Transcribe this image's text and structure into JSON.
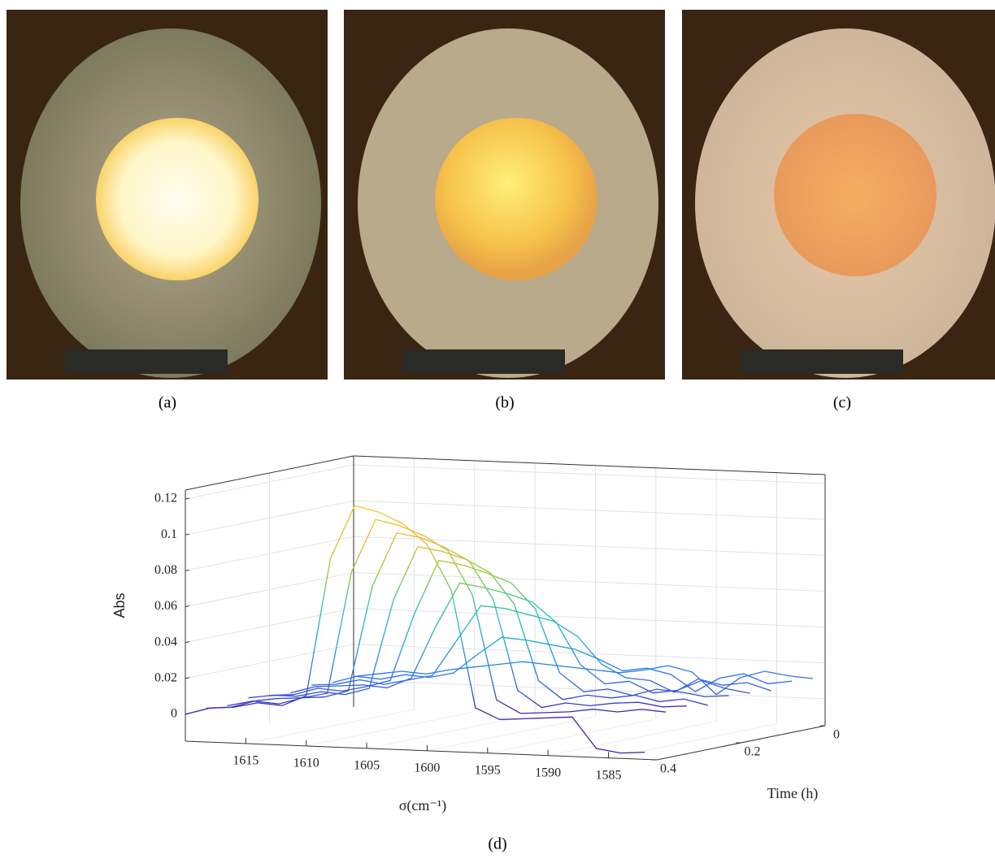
{
  "figure": {
    "captions": [
      "(a)",
      "(b)",
      "(c)",
      "(d)"
    ]
  },
  "chart_data": {
    "type": "waterfall3d",
    "xlabel": "σ(cm⁻¹)",
    "ylabel": "Abs",
    "tlabel": "Time (h)",
    "xlim": [
      1620,
      1581
    ],
    "ylim": [
      -0.015,
      0.125
    ],
    "tlim": [
      0,
      0.4
    ],
    "xticks": [
      1615,
      1610,
      1605,
      1600,
      1595,
      1590,
      1585
    ],
    "yticks": [
      0,
      0.02,
      0.04,
      0.06,
      0.08,
      0.1,
      0.12
    ],
    "tticks": [
      0,
      0.2,
      0.4
    ],
    "grid": true,
    "colormap": [
      "#3e26a8",
      "#2f6ff0",
      "#1aa9d8",
      "#2fc3a0",
      "#9cc93a",
      "#f3b52f",
      "#f9d11c"
    ],
    "x": [
      1620,
      1618,
      1616,
      1614,
      1612,
      1610,
      1608,
      1606,
      1604,
      1602,
      1600,
      1598,
      1596,
      1594,
      1592,
      1590,
      1588,
      1586,
      1584,
      1582
    ],
    "t": [
      0,
      0.05,
      0.1,
      0.15,
      0.2,
      0.25,
      0.3,
      0.35,
      0.4
    ],
    "values": [
      [
        0.002,
        0.004,
        0.006,
        0.005,
        0.008,
        0.01,
        0.012,
        0.014,
        0.013,
        0.012,
        0.011,
        0.01,
        0.012,
        0.015,
        0.012,
        0.0,
        0.01,
        0.014,
        0.012,
        0.011
      ],
      [
        0.001,
        0.005,
        0.004,
        0.007,
        0.006,
        0.009,
        0.02,
        0.03,
        0.029,
        0.027,
        0.025,
        0.02,
        0.014,
        0.016,
        0.013,
        0.004,
        0.012,
        0.015,
        0.01,
        0.012
      ],
      [
        0.002,
        0.003,
        0.006,
        0.004,
        0.007,
        0.01,
        0.03,
        0.05,
        0.049,
        0.046,
        0.043,
        0.035,
        0.02,
        0.013,
        0.012,
        0.006,
        0.014,
        0.011,
        0.013,
        0.009
      ],
      [
        0.0,
        0.004,
        0.005,
        0.006,
        0.005,
        0.011,
        0.04,
        0.065,
        0.063,
        0.06,
        0.056,
        0.045,
        0.022,
        0.012,
        0.014,
        0.008,
        0.01,
        0.016,
        0.012,
        0.01
      ],
      [
        0.001,
        0.002,
        0.006,
        0.005,
        0.008,
        0.012,
        0.05,
        0.08,
        0.078,
        0.074,
        0.069,
        0.055,
        0.02,
        0.01,
        0.012,
        0.009,
        0.013,
        0.012,
        0.01,
        0.011
      ],
      [
        0.002,
        0.004,
        0.004,
        0.007,
        0.006,
        0.01,
        0.06,
        0.09,
        0.088,
        0.084,
        0.077,
        0.06,
        0.018,
        0.008,
        0.011,
        0.01,
        0.012,
        0.009,
        0.011,
        0.008
      ],
      [
        0.0,
        0.003,
        0.005,
        0.006,
        0.007,
        0.011,
        0.07,
        0.1,
        0.098,
        0.093,
        0.086,
        0.065,
        0.015,
        0.006,
        0.009,
        0.008,
        0.01,
        0.011,
        0.009,
        0.01
      ],
      [
        0.001,
        0.002,
        0.006,
        0.005,
        0.009,
        0.012,
        0.08,
        0.11,
        0.107,
        0.102,
        0.094,
        0.07,
        0.012,
        0.005,
        0.006,
        0.007,
        0.009,
        0.008,
        0.01,
        0.009
      ],
      [
        0.0,
        0.004,
        0.005,
        0.008,
        0.007,
        0.013,
        0.09,
        0.12,
        0.117,
        0.111,
        0.1,
        0.075,
        0.01,
        0.004,
        0.005,
        0.006,
        0.007,
        -0.01,
        -0.012,
        -0.011
      ]
    ]
  }
}
